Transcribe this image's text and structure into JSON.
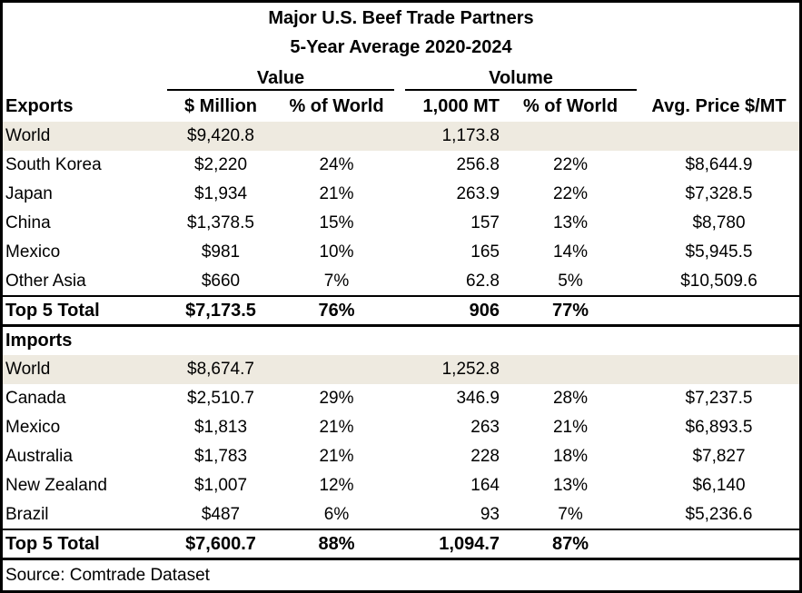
{
  "title_line1": "Major U.S. Beef Trade Partners",
  "title_line2": "5-Year Average 2020-2024",
  "group_headers": {
    "value": "Value",
    "volume": "Volume"
  },
  "columns": {
    "value_million": "$ Million",
    "value_pct": "% of World",
    "volume_mt": "1,000 MT",
    "volume_pct": "% of World",
    "avg_price": "Avg. Price $/MT"
  },
  "exports": {
    "label": "Exports",
    "world": {
      "name": "World",
      "value": "$9,420.8",
      "value_pct": "",
      "volume": "1,173.8",
      "volume_pct": "",
      "price": ""
    },
    "rows": [
      {
        "name": "South Korea",
        "value": "$2,220",
        "value_pct": "24%",
        "volume": "256.8",
        "volume_pct": "22%",
        "price": "$8,644.9"
      },
      {
        "name": "Japan",
        "value": "$1,934",
        "value_pct": "21%",
        "volume": "263.9",
        "volume_pct": "22%",
        "price": "$7,328.5"
      },
      {
        "name": "China",
        "value": "$1,378.5",
        "value_pct": "15%",
        "volume": "157",
        "volume_pct": "13%",
        "price": "$8,780"
      },
      {
        "name": "Mexico",
        "value": "$981",
        "value_pct": "10%",
        "volume": "165",
        "volume_pct": "14%",
        "price": "$5,945.5"
      },
      {
        "name": "Other Asia",
        "value": "$660",
        "value_pct": "7%",
        "volume": "62.8",
        "volume_pct": "5%",
        "price": "$10,509.6"
      }
    ],
    "total": {
      "name": "Top 5 Total",
      "value": "$7,173.5",
      "value_pct": "76%",
      "volume": "906",
      "volume_pct": "77%",
      "price": ""
    }
  },
  "imports": {
    "label": "Imports",
    "world": {
      "name": "World",
      "value": "$8,674.7",
      "value_pct": "",
      "volume": "1,252.8",
      "volume_pct": "",
      "price": ""
    },
    "rows": [
      {
        "name": "Canada",
        "value": "$2,510.7",
        "value_pct": "29%",
        "volume": "346.9",
        "volume_pct": "28%",
        "price": "$7,237.5"
      },
      {
        "name": "Mexico",
        "value": "$1,813",
        "value_pct": "21%",
        "volume": "263",
        "volume_pct": "21%",
        "price": "$6,893.5"
      },
      {
        "name": "Australia",
        "value": "$1,783",
        "value_pct": "21%",
        "volume": "228",
        "volume_pct": "18%",
        "price": "$7,827"
      },
      {
        "name": "New Zealand",
        "value": "$1,007",
        "value_pct": "12%",
        "volume": "164",
        "volume_pct": "13%",
        "price": "$6,140"
      },
      {
        "name": "Brazil",
        "value": "$487",
        "value_pct": "6%",
        "volume": "93",
        "volume_pct": "7%",
        "price": "$5,236.6"
      }
    ],
    "total": {
      "name": "Top 5 Total",
      "value": "$7,600.7",
      "value_pct": "88%",
      "volume": "1,094.7",
      "volume_pct": "87%",
      "price": ""
    }
  },
  "source": "Source: Comtrade Dataset",
  "colors": {
    "shade": "#EEEAE0",
    "border": "#000000"
  }
}
